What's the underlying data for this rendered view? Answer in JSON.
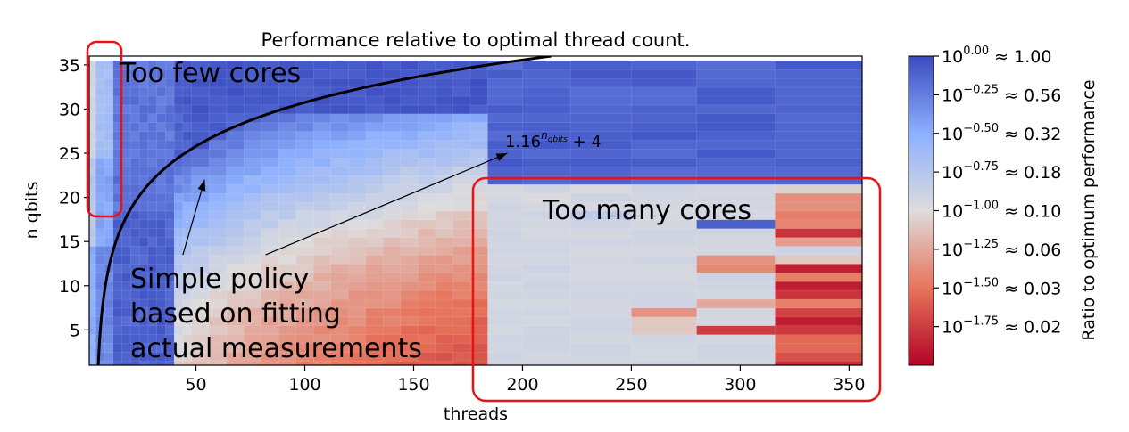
{
  "chart_data": {
    "type": "heatmap",
    "title": "Performance relative to optimal thread count.",
    "xlabel": "threads",
    "ylabel": "n qbits",
    "xlim": [
      1,
      356
    ],
    "ylim": [
      1,
      36
    ],
    "x_ticks": [
      50,
      100,
      150,
      200,
      250,
      300,
      350
    ],
    "y_ticks": [
      5,
      10,
      15,
      20,
      25,
      30,
      35
    ],
    "x_bin_edges": [
      1,
      4,
      8,
      12,
      16,
      20,
      24,
      28,
      32,
      36,
      40,
      44,
      48,
      56,
      64,
      72,
      80,
      88,
      96,
      104,
      112,
      120,
      128,
      136,
      144,
      152,
      160,
      168,
      176,
      184,
      200,
      222,
      250,
      280,
      316,
      356
    ],
    "color_scale": {
      "label": "Ratio to optimum performance",
      "log10_min": -2.0,
      "log10_max": 0.0,
      "tick_labels": [
        {
          "log10": 0.0,
          "label": "10^0.00 ≈ 1.00"
        },
        {
          "log10": -0.25,
          "label": "10^−0.25 ≈ 0.56"
        },
        {
          "log10": -0.5,
          "label": "10^−0.50 ≈ 0.32"
        },
        {
          "log10": -0.75,
          "label": "10^−0.75 ≈ 0.18"
        },
        {
          "log10": -1.0,
          "label": "10^−1.00 ≈ 0.10"
        },
        {
          "log10": -1.25,
          "label": "10^−1.25 ≈ 0.06"
        },
        {
          "log10": -1.5,
          "label": "10^−1.50 ≈ 0.03"
        },
        {
          "log10": -1.75,
          "label": "10^−1.75 ≈ 0.02"
        }
      ],
      "colors": [
        "#b40426",
        "#e7745b",
        "#dddcdc",
        "#8db0fe",
        "#3b4cc0"
      ]
    },
    "fit_curve": {
      "label_base": "1.16",
      "label_exp": "n",
      "label_exp_sub": "qbits",
      "label_tail": " + 4",
      "formula": "threads = 1.16^n + 4",
      "base": 1.16,
      "offset": 4
    },
    "annotations": [
      {
        "id": "too-few",
        "text": "Too few cores",
        "region": {
          "threads": [
            1,
            12
          ],
          "qbits": [
            18,
            36
          ]
        }
      },
      {
        "id": "too-many",
        "text": "Too many cores",
        "region": {
          "threads": [
            184,
            356
          ],
          "qbits": [
            1,
            22
          ]
        }
      },
      {
        "id": "policy",
        "lines": [
          "Simple policy",
          "based on fitting",
          "actual measurements"
        ]
      }
    ],
    "arrows": [
      {
        "from": [
          44,
          13.5
        ],
        "to": [
          54,
          22
        ]
      },
      {
        "from": [
          82,
          13.5
        ],
        "to": [
          193,
          25
        ]
      }
    ]
  }
}
